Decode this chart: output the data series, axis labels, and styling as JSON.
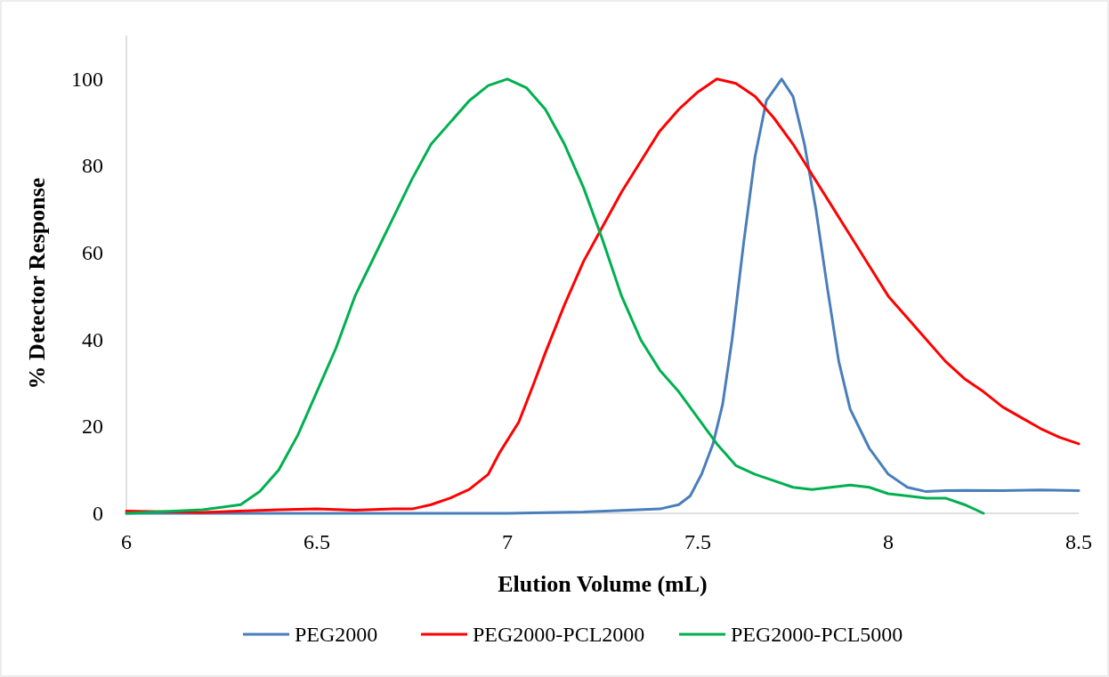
{
  "chart_data": {
    "type": "line",
    "xlabel": "Elution Volume (mL)",
    "ylabel": "% Detector Response",
    "xlim": [
      6,
      8.5
    ],
    "xticks": [
      6,
      6.5,
      7,
      7.5,
      8,
      8.5
    ],
    "ylim": [
      0,
      110
    ],
    "yticks": [
      0,
      20,
      40,
      60,
      80,
      100
    ],
    "grid": false,
    "legend": "bottom",
    "line_style": "solid",
    "marker": "none",
    "series": [
      {
        "name": "PEG2000",
        "color": "#4a7ebb",
        "x": [
          6,
          6.5,
          7,
          7.2,
          7.4,
          7.45,
          7.48,
          7.51,
          7.54,
          7.565,
          7.59,
          7.62,
          7.65,
          7.68,
          7.72,
          7.75,
          7.78,
          7.81,
          7.84,
          7.87,
          7.9,
          7.95,
          8,
          8.05,
          8.1,
          8.15,
          8.2,
          8.3,
          8.4,
          8.5
        ],
        "values": [
          0,
          0,
          0,
          0.3,
          1,
          2,
          4,
          9,
          16,
          25,
          40,
          62,
          82,
          95,
          100,
          96,
          85,
          70,
          52,
          35,
          24,
          15,
          9,
          6,
          5,
          5.2,
          5.3,
          5.2,
          5.4,
          5.2
        ]
      },
      {
        "name": "PEG2000-PCL2000",
        "color": "#ff0000",
        "x": [
          6,
          6.2,
          6.4,
          6.5,
          6.6,
          6.7,
          6.75,
          6.8,
          6.85,
          6.9,
          6.95,
          6.98,
          7.03,
          7.07,
          7.1,
          7.15,
          7.2,
          7.25,
          7.3,
          7.35,
          7.4,
          7.45,
          7.5,
          7.55,
          7.6,
          7.65,
          7.7,
          7.75,
          7.8,
          7.85,
          7.9,
          7.95,
          8,
          8.05,
          8.1,
          8.15,
          8.2,
          8.25,
          8.3,
          8.35,
          8.4,
          8.45,
          8.5
        ],
        "values": [
          0.5,
          0.2,
          0.8,
          1,
          0.7,
          1,
          1,
          2,
          3.5,
          5.5,
          9,
          14,
          21,
          30,
          37,
          48,
          58,
          66,
          74,
          81,
          88,
          93,
          97,
          100,
          99,
          96,
          91,
          85,
          78,
          71,
          64,
          57,
          50,
          45,
          40,
          35,
          31,
          28,
          24.5,
          22,
          19.5,
          17.5,
          16
        ]
      },
      {
        "name": "PEG2000-PCL5000",
        "color": "#00b050",
        "x": [
          6,
          6.2,
          6.3,
          6.35,
          6.4,
          6.45,
          6.5,
          6.55,
          6.6,
          6.65,
          6.7,
          6.75,
          6.8,
          6.85,
          6.9,
          6.95,
          7,
          7.05,
          7.1,
          7.15,
          7.2,
          7.25,
          7.3,
          7.35,
          7.4,
          7.45,
          7.5,
          7.55,
          7.6,
          7.65,
          7.7,
          7.75,
          7.8,
          7.85,
          7.9,
          7.95,
          8,
          8.1,
          8.15,
          8.2,
          8.25
        ],
        "values": [
          0,
          0.8,
          2,
          5,
          10,
          18,
          28,
          38,
          50,
          59,
          68,
          77,
          85,
          90,
          95,
          98.5,
          100,
          98,
          93,
          85,
          75,
          63,
          50,
          40,
          33,
          28,
          22,
          16,
          11,
          9,
          7.5,
          6,
          5.5,
          6,
          6.5,
          6,
          4.5,
          3.5,
          3.5,
          2,
          0
        ]
      }
    ]
  }
}
